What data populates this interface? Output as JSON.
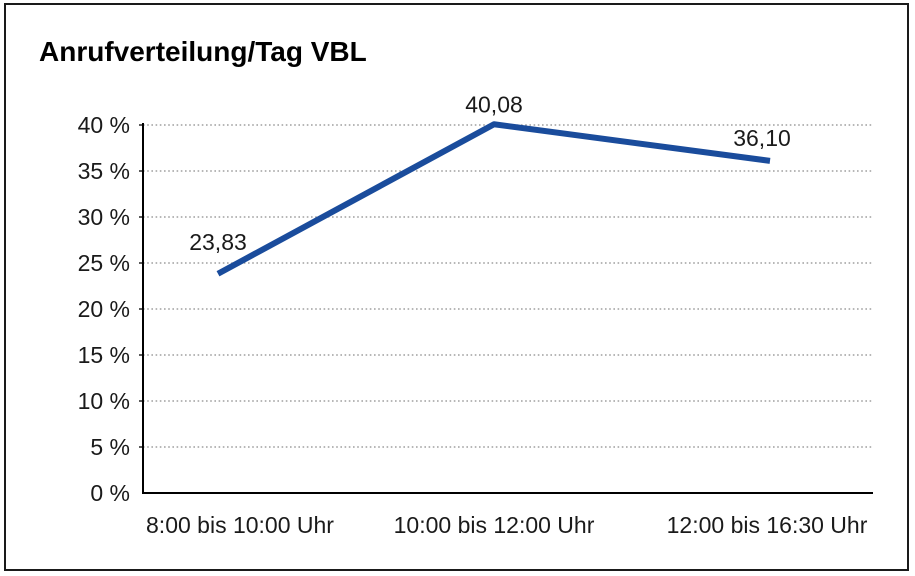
{
  "chart_data": {
    "type": "line",
    "title": "Anrufverteilung/Tag VBL",
    "categories": [
      "8:00 bis 10:00 Uhr",
      "10:00 bis 12:00 Uhr",
      "12:00 bis 16:30 Uhr"
    ],
    "series": [
      {
        "values": [
          23.83,
          40.08,
          36.1
        ]
      }
    ],
    "data_labels": [
      "23,83",
      "40,08",
      "36,10"
    ],
    "xlabel": "",
    "ylabel": "",
    "ylim": [
      0,
      40
    ],
    "y_tick_step": 5,
    "y_tick_labels": [
      "0 %",
      "5 %",
      "10 %",
      "15 %",
      "20 %",
      "25 %",
      "30 %",
      "35 %",
      "40 %"
    ],
    "y_tick_values": [
      0,
      5,
      10,
      15,
      20,
      25,
      30,
      35,
      40
    ],
    "grid": "horizontal-dotted",
    "legend": "none",
    "colors": {
      "line": "#1A4C9C",
      "grid": "#8c8c8c",
      "axis": "#000000",
      "text": "#1a1a1a",
      "frame_border": "#1a1a1a",
      "background": "#ffffff"
    }
  }
}
